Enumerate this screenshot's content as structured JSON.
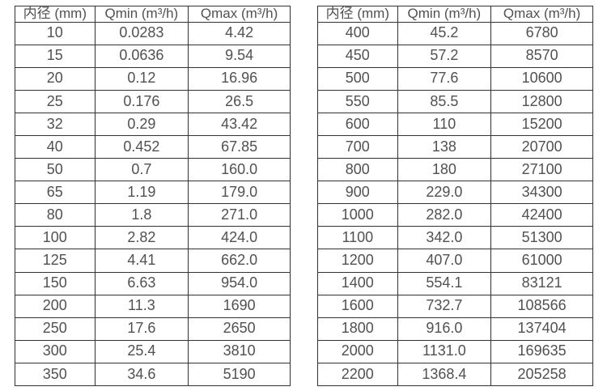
{
  "page": {
    "background": "#ffffff",
    "border_color": "#333333",
    "text_color": "#515151"
  },
  "tables": [
    {
      "headers": [
        "内径 (mm)",
        "Qmin (m³/h)",
        "Qmax (m³/h)"
      ],
      "rows": [
        [
          "10",
          "0.0283",
          "4.42"
        ],
        [
          "15",
          "0.0636",
          "9.54"
        ],
        [
          "20",
          "0.12",
          "16.96"
        ],
        [
          "25",
          "0.176",
          "26.5"
        ],
        [
          "32",
          "0.29",
          "43.42"
        ],
        [
          "40",
          "0.452",
          "67.85"
        ],
        [
          "50",
          "0.7",
          "160.0"
        ],
        [
          "65",
          "1.19",
          "179.0"
        ],
        [
          "80",
          "1.8",
          "271.0"
        ],
        [
          "100",
          "2.82",
          "424.0"
        ],
        [
          "125",
          "4.41",
          "662.0"
        ],
        [
          "150",
          "6.63",
          "954.0"
        ],
        [
          "200",
          "11.3",
          "1690"
        ],
        [
          "250",
          "17.6",
          "2650"
        ],
        [
          "300",
          "25.4",
          "3810"
        ],
        [
          "350",
          "34.6",
          "5190"
        ]
      ]
    },
    {
      "headers": [
        "内径 (mm)",
        "Qmin (m³/h)",
        "Qmax (m³/h)"
      ],
      "rows": [
        [
          "400",
          "45.2",
          "6780"
        ],
        [
          "450",
          "57.2",
          "8570"
        ],
        [
          "500",
          "77.6",
          "10600"
        ],
        [
          "550",
          "85.5",
          "12800"
        ],
        [
          "600",
          "110",
          "15200"
        ],
        [
          "700",
          "138",
          "20700"
        ],
        [
          "800",
          "180",
          "27100"
        ],
        [
          "900",
          "229.0",
          "34300"
        ],
        [
          "1000",
          "282.0",
          "42400"
        ],
        [
          "1100",
          "342.0",
          "51300"
        ],
        [
          "1200",
          "407.0",
          "61000"
        ],
        [
          "1400",
          "554.1",
          "83121"
        ],
        [
          "1600",
          "732.7",
          "108566"
        ],
        [
          "1800",
          "916.0",
          "137404"
        ],
        [
          "2000",
          "1131.0",
          "169635"
        ],
        [
          "2200",
          "1368.4",
          "205258"
        ]
      ]
    }
  ]
}
